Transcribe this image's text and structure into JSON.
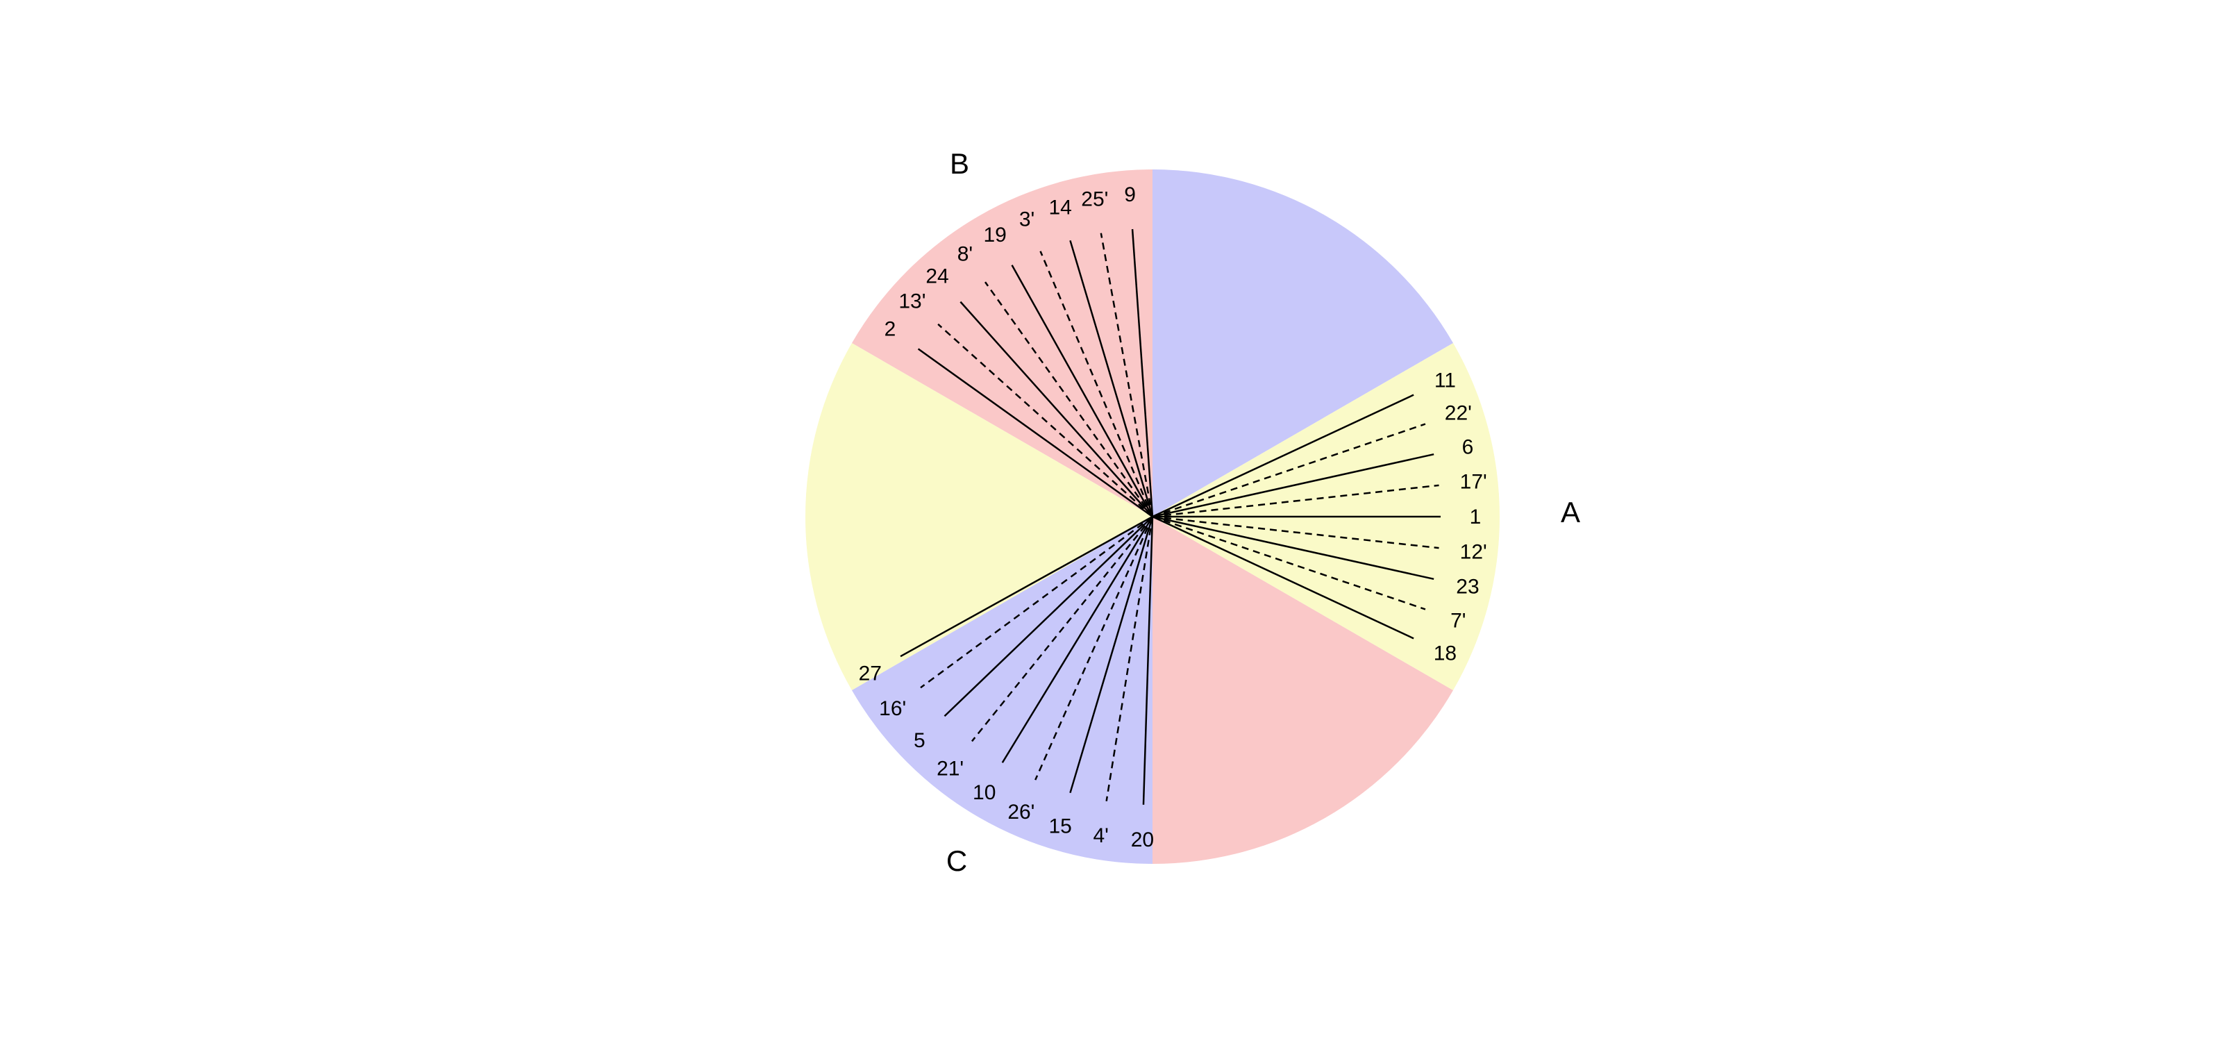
{
  "diagram": {
    "sectors": [
      {
        "from_deg": 30,
        "to_deg": 90,
        "color": "#c8c8fa"
      },
      {
        "from_deg": 90,
        "to_deg": 150,
        "color": "#fac8c8"
      },
      {
        "from_deg": 150,
        "to_deg": 210,
        "color": "#fafac8"
      },
      {
        "from_deg": 210,
        "to_deg": 270,
        "color": "#c8c8fa"
      },
      {
        "from_deg": 270,
        "to_deg": 330,
        "color": "#fac8c8"
      },
      {
        "from_deg": 330,
        "to_deg": 390,
        "color": "#fafac8"
      }
    ],
    "groups": [
      {
        "label": "A",
        "rays": [
          {
            "label": "11",
            "style": "solid"
          },
          {
            "label": "22'",
            "style": "dashed"
          },
          {
            "label": "6",
            "style": "solid"
          },
          {
            "label": "17'",
            "style": "dashed"
          },
          {
            "label": "1",
            "style": "solid"
          },
          {
            "label": "12'",
            "style": "dashed"
          },
          {
            "label": "23",
            "style": "solid"
          },
          {
            "label": "7'",
            "style": "dashed"
          },
          {
            "label": "18",
            "style": "solid"
          }
        ]
      },
      {
        "label": "B",
        "rays": [
          {
            "label": "9",
            "style": "solid"
          },
          {
            "label": "25'",
            "style": "dashed"
          },
          {
            "label": "14",
            "style": "solid"
          },
          {
            "label": "3'",
            "style": "dashed"
          },
          {
            "label": "19",
            "style": "solid"
          },
          {
            "label": "8'",
            "style": "dashed"
          },
          {
            "label": "24",
            "style": "solid"
          },
          {
            "label": "13'",
            "style": "dashed"
          },
          {
            "label": "2",
            "style": "solid"
          }
        ]
      },
      {
        "label": "C",
        "rays": [
          {
            "label": "27",
            "style": "solid"
          },
          {
            "label": "16'",
            "style": "dashed"
          },
          {
            "label": "5",
            "style": "solid"
          },
          {
            "label": "21'",
            "style": "dashed"
          },
          {
            "label": "10",
            "style": "solid"
          },
          {
            "label": "26'",
            "style": "dashed"
          },
          {
            "label": "15",
            "style": "solid"
          },
          {
            "label": "4'",
            "style": "dashed"
          },
          {
            "label": "20",
            "style": "solid"
          }
        ]
      }
    ]
  }
}
